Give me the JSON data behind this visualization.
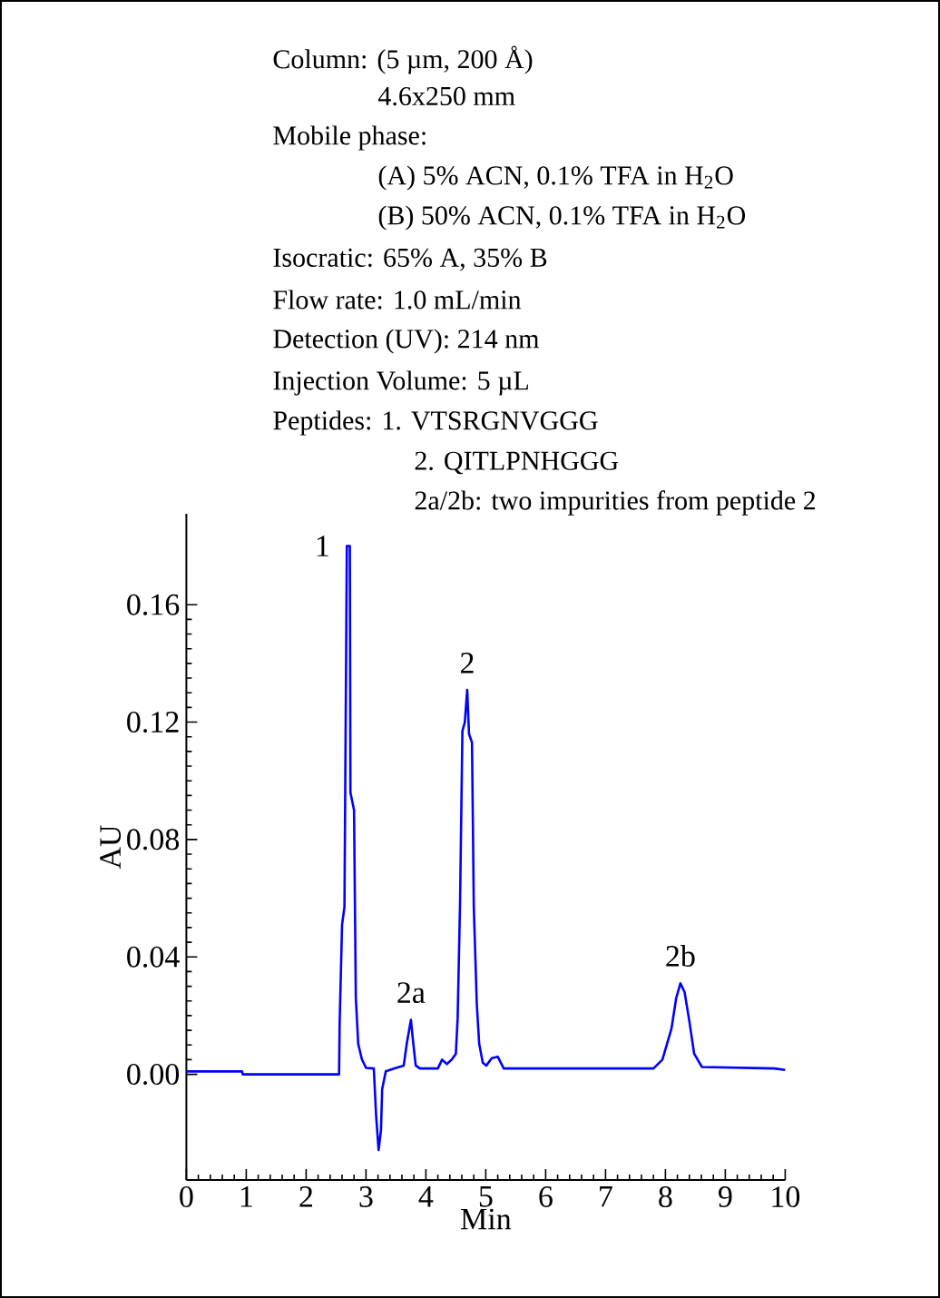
{
  "chart_data": {
    "type": "line",
    "xlabel": "Min",
    "ylabel": "AU",
    "color": "#0000ff",
    "xlim": [
      0,
      10
    ],
    "ylim": [
      -0.036,
      0.191
    ],
    "xticks": [
      0,
      1,
      2,
      3,
      4,
      5,
      6,
      7,
      8,
      9,
      10
    ],
    "yticks": [
      {
        "value": 0,
        "label": "0.00"
      },
      {
        "value": 0.04,
        "label": "0.04"
      },
      {
        "value": 0.08,
        "label": "0.08"
      },
      {
        "value": 0.12,
        "label": "0.12"
      },
      {
        "value": 0.16,
        "label": "0.16"
      }
    ],
    "x": [
      0,
      0.93,
      0.94,
      2.55,
      2.56,
      2.6,
      2.64,
      2.68,
      2.73,
      2.74,
      2.8,
      2.83,
      2.87,
      2.93,
      3.0,
      3.13,
      3.17,
      3.21,
      3.25,
      3.27,
      3.33,
      3.5,
      3.63,
      3.68,
      3.75,
      3.79,
      3.83,
      3.9,
      4.2,
      4.27,
      4.35,
      4.43,
      4.5,
      4.53,
      4.57,
      4.61,
      4.65,
      4.69,
      4.72,
      4.77,
      4.8,
      4.85,
      4.89,
      4.95,
      5.01,
      5.1,
      5.2,
      5.3,
      5.65,
      7.8,
      7.95,
      8.1,
      8.18,
      8.25,
      8.32,
      8.4,
      8.48,
      8.61,
      9.82,
      10
    ],
    "values": [
      0.001,
      0.001,
      0.0,
      0.0,
      0.0176,
      0.051,
      0.057,
      0.18,
      0.18,
      0.096,
      0.09,
      0.026,
      0.0104,
      0.0052,
      0.0022,
      0.002,
      -0.0145,
      -0.0258,
      -0.019,
      -0.005,
      0.001,
      0.0022,
      0.003,
      0.0104,
      0.0186,
      0.0104,
      0.003,
      0.002,
      0.002,
      0.005,
      0.0035,
      0.005,
      0.007,
      0.019,
      0.058,
      0.117,
      0.12,
      0.131,
      0.116,
      0.113,
      0.057,
      0.024,
      0.0104,
      0.004,
      0.003,
      0.0055,
      0.006,
      0.002,
      0.002,
      0.002,
      0.005,
      0.0155,
      0.026,
      0.031,
      0.028,
      0.018,
      0.007,
      0.0025,
      0.002,
      0.0015
    ],
    "annotations": [
      "Column: (5 µm, 200 Å)",
      "4.6x250 mm",
      "Mobile phase:",
      "(A) 5% ACN, 0.1% TFA in H$_{2}$O",
      "(B) 50% ACN, 0.1% TFA in H$_{2}$O",
      "Isocratic: 65% A, 35% B",
      "Flow rate: 1.0 mL/min",
      "Detection (UV): 214 nm",
      "Injection Volume: 5 µL",
      "Peptides: 1. VTSRGNVGGG",
      "2. QITLPNHGGG",
      "2a/2b: two impurities from peptide 2",
      {
        "text": "1",
        "x": 2.68,
        "y": 0.18
      },
      {
        "text": "2a",
        "x": 3.75,
        "y": 0.0186
      },
      {
        "text": "2",
        "x": 4.69,
        "y": 0.131
      },
      {
        "text": "2b",
        "x": 8.25,
        "y": 0.031
      }
    ]
  }
}
